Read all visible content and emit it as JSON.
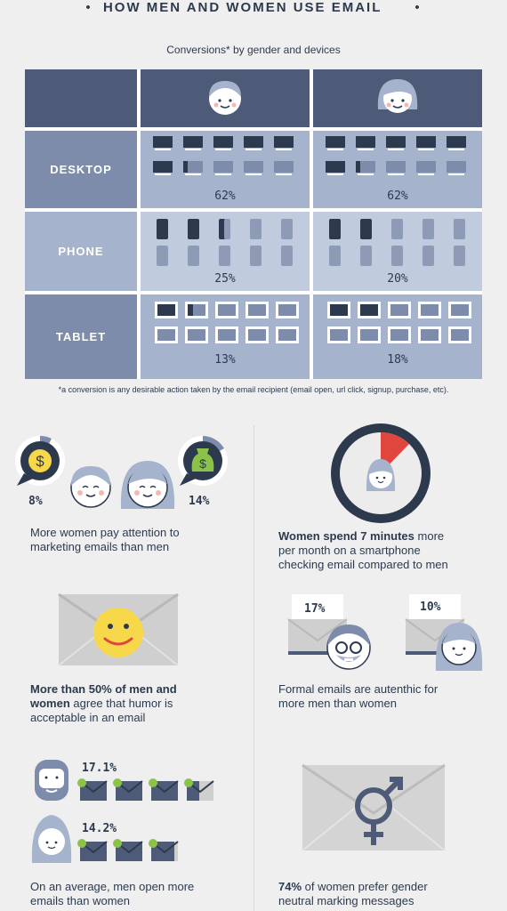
{
  "title": "HOW MEN AND WOMEN USE EMAIL",
  "subtitle": "Conversions* by gender and devices",
  "colors": {
    "dark": "#4d5b78",
    "mid": "#7c8caa",
    "light": "#a5b3cc",
    "navy": "#2d3a4e",
    "red": "#e0463d",
    "yellow": "#f7d84b"
  },
  "conversions": {
    "rows": [
      {
        "label": "DESKTOP",
        "men": "62%",
        "women": "62%"
      },
      {
        "label": "PHONE",
        "men": "25%",
        "women": "20%"
      },
      {
        "label": "TABLET",
        "men": "13%",
        "women": "18%"
      }
    ]
  },
  "footnote": "*a conversion is any desirable action taken by the email recipient (email open, url click, signup, purchase, etc).",
  "attention": {
    "men_pct": "8%",
    "women_pct": "14%",
    "line1": "More women pay attention to",
    "line2": "marketing emails than men"
  },
  "smartphone": {
    "bold": "Women spend 7 minutes",
    "rest1": " more",
    "line2": "per month on a smartphone",
    "line3": "checking email compared to men"
  },
  "humor": {
    "line1": "More than 50% of men and",
    "line2_bold": "women",
    "line2_rest": " agree that humor is",
    "line3": "acceptable in an email"
  },
  "formal": {
    "men_pct": "17%",
    "women_pct": "10%",
    "line1": "Formal emails are autenthic for",
    "line2": "more men than women"
  },
  "opens": {
    "men_pct": "17.1%",
    "women_pct": "14.2%",
    "line1": "On an average, men open more",
    "line2": "emails than women"
  },
  "neutral": {
    "bold": "74%",
    "rest1": " of women prefer gender",
    "line2": "neutral marking messages"
  }
}
